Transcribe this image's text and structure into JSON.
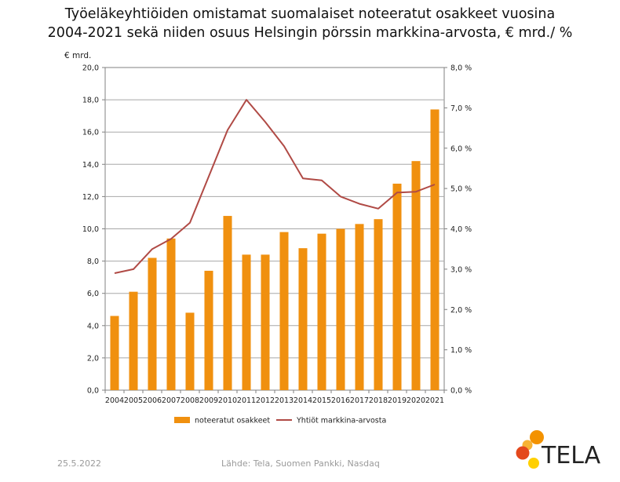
{
  "title_line1": "Työeläkeyhtiöiden omistamat suomalaiset noteeratut osakkeet vuosina",
  "title_line2": "2004-2021 sekä niiden osuus Helsingin pörssin markkina-arvosta, € mrd./ %",
  "footer": {
    "date": "25.5.2022",
    "source": "Lähde: Tela, Suomen Pankki, Nasdaq"
  },
  "logo": {
    "text": "TELA"
  },
  "colors": {
    "bar": "#F0900F",
    "line": "#B04A45",
    "grid": "#a8a8a8",
    "axis": "#808080",
    "logo_orange": "#F39200",
    "logo_light": "#F7B233",
    "logo_yellow": "#FFD000",
    "logo_red": "#E4481C"
  },
  "chart_data": {
    "type": "bar+line",
    "categories": [
      "2004",
      "2005",
      "2006",
      "2007",
      "2008",
      "2009",
      "2010",
      "2011",
      "2012",
      "2013",
      "2014",
      "2015",
      "2016",
      "2017",
      "2018",
      "2019",
      "2020",
      "2021"
    ],
    "series": [
      {
        "name": "noteeratut osakkeet",
        "type": "bar",
        "axis": "left",
        "values": [
          4.6,
          6.1,
          8.2,
          9.4,
          4.8,
          7.4,
          10.8,
          8.4,
          8.4,
          9.8,
          8.8,
          9.7,
          10.0,
          10.3,
          10.6,
          12.8,
          14.2,
          17.4
        ]
      },
      {
        "name": "Yhtiöt markkina-arvosta",
        "type": "line",
        "axis": "right",
        "values": [
          2.9,
          3.0,
          3.5,
          3.75,
          4.15,
          5.3,
          6.45,
          7.2,
          6.65,
          6.05,
          5.25,
          5.2,
          4.8,
          4.62,
          4.5,
          4.9,
          4.92,
          5.1
        ]
      }
    ],
    "y_left": {
      "label": "€ mrd.",
      "range": [
        0,
        20
      ],
      "ticks": [
        "0,0",
        "2,0",
        "4,0",
        "6,0",
        "8,0",
        "10,0",
        "12,0",
        "14,0",
        "16,0",
        "18,0",
        "20,0"
      ]
    },
    "y_right": {
      "range": [
        0,
        8
      ],
      "ticks": [
        "0,0 %",
        "1,0 %",
        "2,0 %",
        "3,0 %",
        "4,0 %",
        "5,0 %",
        "6,0 %",
        "7,0 %",
        "8,0 %"
      ]
    },
    "grid": true,
    "legend": "bottom"
  }
}
